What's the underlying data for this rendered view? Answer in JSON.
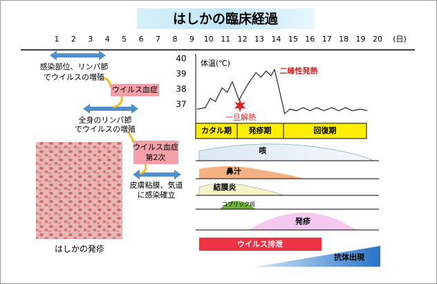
{
  "title": "はしかの臨床経過",
  "day_axis": {
    "days": [
      1,
      2,
      3,
      4,
      5,
      6,
      7,
      8,
      9,
      10,
      11,
      12,
      13,
      14,
      15,
      16,
      17,
      18,
      19,
      20
    ],
    "unit": "(日)"
  },
  "left": {
    "stage1": {
      "lines": [
        "感染部位、リンパ節",
        "でウイルスの増殖"
      ]
    },
    "viremia1": "ウイルス血症",
    "stage2": {
      "lines": [
        "全身のリンパ節",
        "でウイルスの増殖"
      ]
    },
    "viremia2": {
      "lines": [
        "ウイルス血症",
        "第2次"
      ]
    },
    "stage3": {
      "lines": [
        "皮膚粘膜、気道",
        "に感染確立"
      ]
    },
    "photo_caption": "はしかの発疹"
  },
  "fever_chart": {
    "label": "体温(℃)",
    "yticks": [
      37,
      38,
      39,
      40
    ],
    "annotation": "二峰性発熱",
    "dip_label": "一旦解熱",
    "x": [
      9.3,
      9.8,
      10.1,
      10.4,
      10.8,
      11.1,
      11.4,
      11.8,
      12.3,
      12.8,
      13.1,
      13.4,
      13.7,
      13.9,
      14.2,
      14.5,
      14.8,
      15.2,
      15.6,
      16.0,
      16.4,
      16.8,
      17.3,
      17.7,
      18.1,
      18.5,
      19.0,
      19.4
    ],
    "values": [
      36.7,
      36.8,
      37.4,
      37.2,
      38.1,
      37.8,
      38.5,
      37.3,
      38.3,
      39.1,
      38.8,
      39.2,
      38.9,
      39.3,
      37.9,
      36.4,
      36.7,
      36.6,
      36.8,
      36.6,
      36.8,
      36.6,
      36.8,
      36.6,
      36.8,
      36.6,
      36.7,
      36.6
    ]
  },
  "phases": [
    "カタル期",
    "発疹期",
    "回復期"
  ],
  "symptoms": [
    "咳",
    "鼻汁",
    "結膜炎",
    "コプリック斑",
    "発疹"
  ],
  "virus_shedding": "ウイルス排泄",
  "antibody": "抗体出現"
}
